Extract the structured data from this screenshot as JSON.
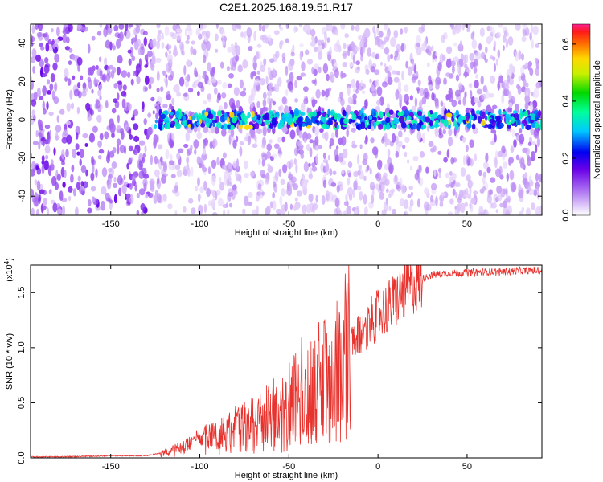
{
  "title": "C2E1.2025.168.19.51.R17",
  "chart_data": [
    {
      "type": "heatmap",
      "xlabel": "Height of straight line (km)",
      "ylabel": "Frequency (Hz)",
      "xlim": [
        -195,
        92
      ],
      "ylim": [
        -50,
        50
      ],
      "xticks": [
        -150,
        -100,
        -50,
        0,
        50
      ],
      "yticks": [
        -40,
        -20,
        0,
        20,
        40
      ],
      "colorbar": {
        "label": "Normalized spectral amplitude",
        "range": [
          0.0,
          0.67
        ],
        "ticks": [
          "0.0",
          "0.2",
          "0.4",
          "0.6"
        ]
      },
      "features": {
        "noise_region_end_km": -127,
        "signal_band_center_hz": 0,
        "signal_band_start_km": -127,
        "peak_amplitude": 0.6
      }
    },
    {
      "type": "line",
      "xlabel": "Height of straight line (km)",
      "ylabel": "SNR (10 * v/v)",
      "y_scale_note": "(x10",
      "y_scale_exponent": "4",
      "xlim": [
        -195,
        92
      ],
      "ylim": [
        0,
        1.75
      ],
      "xticks": [
        -150,
        -100,
        -50,
        0,
        50
      ],
      "yticks": [
        "0.0",
        "0.5",
        "1.0",
        "1.5"
      ],
      "color": "#e8322d",
      "series": [
        {
          "x": [
            -195,
            -175,
            -150,
            -130,
            -120,
            -110,
            -100,
            -90,
            -80,
            -70,
            -60,
            -50,
            -40,
            -30,
            -20,
            -15,
            -10,
            -5,
            0,
            5,
            10,
            15,
            20,
            25,
            30,
            40,
            50,
            60,
            70,
            80,
            92
          ],
          "values": [
            0.01,
            0.01,
            0.02,
            0.02,
            0.05,
            0.1,
            0.17,
            0.22,
            0.28,
            0.33,
            0.4,
            0.5,
            0.62,
            0.74,
            0.88,
            1.0,
            1.12,
            1.22,
            1.3,
            1.36,
            1.44,
            1.52,
            1.58,
            1.63,
            1.66,
            1.68,
            1.68,
            1.69,
            1.69,
            1.7,
            1.7
          ]
        }
      ]
    }
  ]
}
